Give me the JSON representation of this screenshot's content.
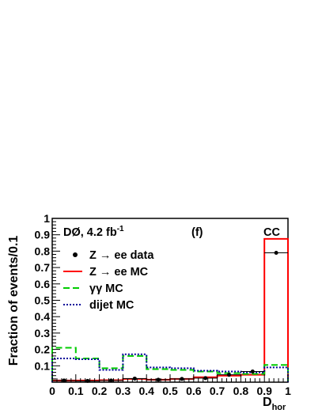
{
  "chart_data": {
    "type": "histogram",
    "experiment_label": "DØ, 4.2 fb",
    "experiment_label_sup": "-1",
    "panel_label": "(f)",
    "region_label": "CC",
    "xlabel": "D",
    "xlabel_sub": "hor",
    "ylabel": "Fraction of events/0.1",
    "xlim": [
      0,
      1
    ],
    "ylim": [
      0,
      1
    ],
    "x_ticks": [
      "0",
      "0.1",
      "0.2",
      "0.3",
      "0.4",
      "0.5",
      "0.6",
      "0.7",
      "0.8",
      "0.9",
      "1"
    ],
    "y_ticks": [
      "0.1",
      "0.2",
      "0.3",
      "0.4",
      "0.5",
      "0.6",
      "0.7",
      "0.8",
      "0.9",
      "1"
    ],
    "bin_edges": [
      0,
      0.1,
      0.2,
      0.3,
      0.4,
      0.5,
      0.6,
      0.7,
      0.8,
      0.9,
      1.0
    ],
    "series": [
      {
        "name": "Z → ee data",
        "kind": "points",
        "color": "#000000",
        "values": [
          0.01,
          0.008,
          0.01,
          0.022,
          0.015,
          0.02,
          0.025,
          0.045,
          0.065,
          0.79
        ]
      },
      {
        "name": "Z → ee MC",
        "kind": "step",
        "color": "#ff0000",
        "dash": "solid",
        "values": [
          0.01,
          0.01,
          0.012,
          0.02,
          0.015,
          0.02,
          0.03,
          0.04,
          0.045,
          0.875
        ]
      },
      {
        "name": "γγ MC",
        "kind": "step",
        "color": "#00cc00",
        "dash": "long-dash",
        "values": [
          0.21,
          0.145,
          0.085,
          0.16,
          0.08,
          0.075,
          0.065,
          0.055,
          0.05,
          0.105
        ]
      },
      {
        "name": "dijet MC",
        "kind": "step",
        "color": "#000099",
        "dash": "dotted",
        "values": [
          0.145,
          0.14,
          0.075,
          0.17,
          0.09,
          0.085,
          0.07,
          0.065,
          0.06,
          0.09
        ]
      }
    ]
  }
}
